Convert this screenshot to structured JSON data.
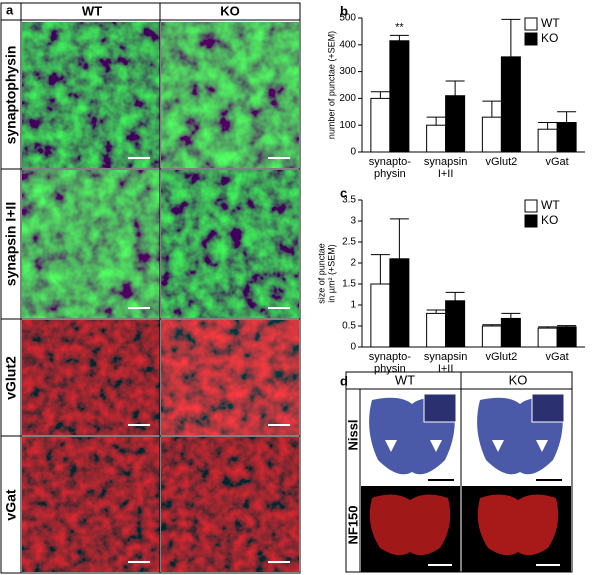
{
  "panel_a": {
    "label": "a",
    "columns": [
      "WT",
      "KO"
    ],
    "rows": [
      "synaptophysin",
      "synapsin I+II",
      "vGlut2",
      "vGat"
    ]
  },
  "panel_d": {
    "label": "d",
    "columns": [
      "WT",
      "KO"
    ],
    "rows": [
      "Nissl",
      "NF150"
    ]
  },
  "chart_data": [
    {
      "type": "bar",
      "panel_label": "b",
      "ylabel": [
        "number of punctae (+SEM)"
      ],
      "categories": [
        "synapto-\nphysin",
        "synapsin\nI+II",
        "vGlut2",
        "vGat"
      ],
      "series": [
        {
          "name": "WT",
          "color": "#ffffff",
          "values": [
            200,
            100,
            130,
            85
          ],
          "errors": [
            25,
            30,
            60,
            25
          ]
        },
        {
          "name": "KO",
          "color": "#000000",
          "values": [
            415,
            210,
            355,
            110
          ],
          "errors": [
            20,
            55,
            140,
            40
          ]
        }
      ],
      "annotation": "**",
      "ylim": [
        0,
        500
      ],
      "yticks": [
        0,
        100,
        200,
        300,
        400,
        500
      ]
    },
    {
      "type": "bar",
      "panel_label": "c",
      "ylabel": [
        "size of punctae",
        "in µm² (+SEM)"
      ],
      "categories": [
        "synapto-\nphysin",
        "synapsin\nI+II",
        "vGlut2",
        "vGat"
      ],
      "series": [
        {
          "name": "WT",
          "color": "#ffffff",
          "values": [
            1.5,
            0.8,
            0.5,
            0.45
          ],
          "errors": [
            0.7,
            0.08,
            0.03,
            0.03
          ]
        },
        {
          "name": "KO",
          "color": "#000000",
          "values": [
            2.1,
            1.1,
            0.68,
            0.48
          ],
          "errors": [
            0.95,
            0.2,
            0.12,
            0.03
          ]
        }
      ],
      "ylim": [
        0,
        3.5
      ],
      "yticks": [
        0,
        0.5,
        1,
        1.5,
        2,
        2.5,
        3,
        3.5
      ]
    }
  ]
}
